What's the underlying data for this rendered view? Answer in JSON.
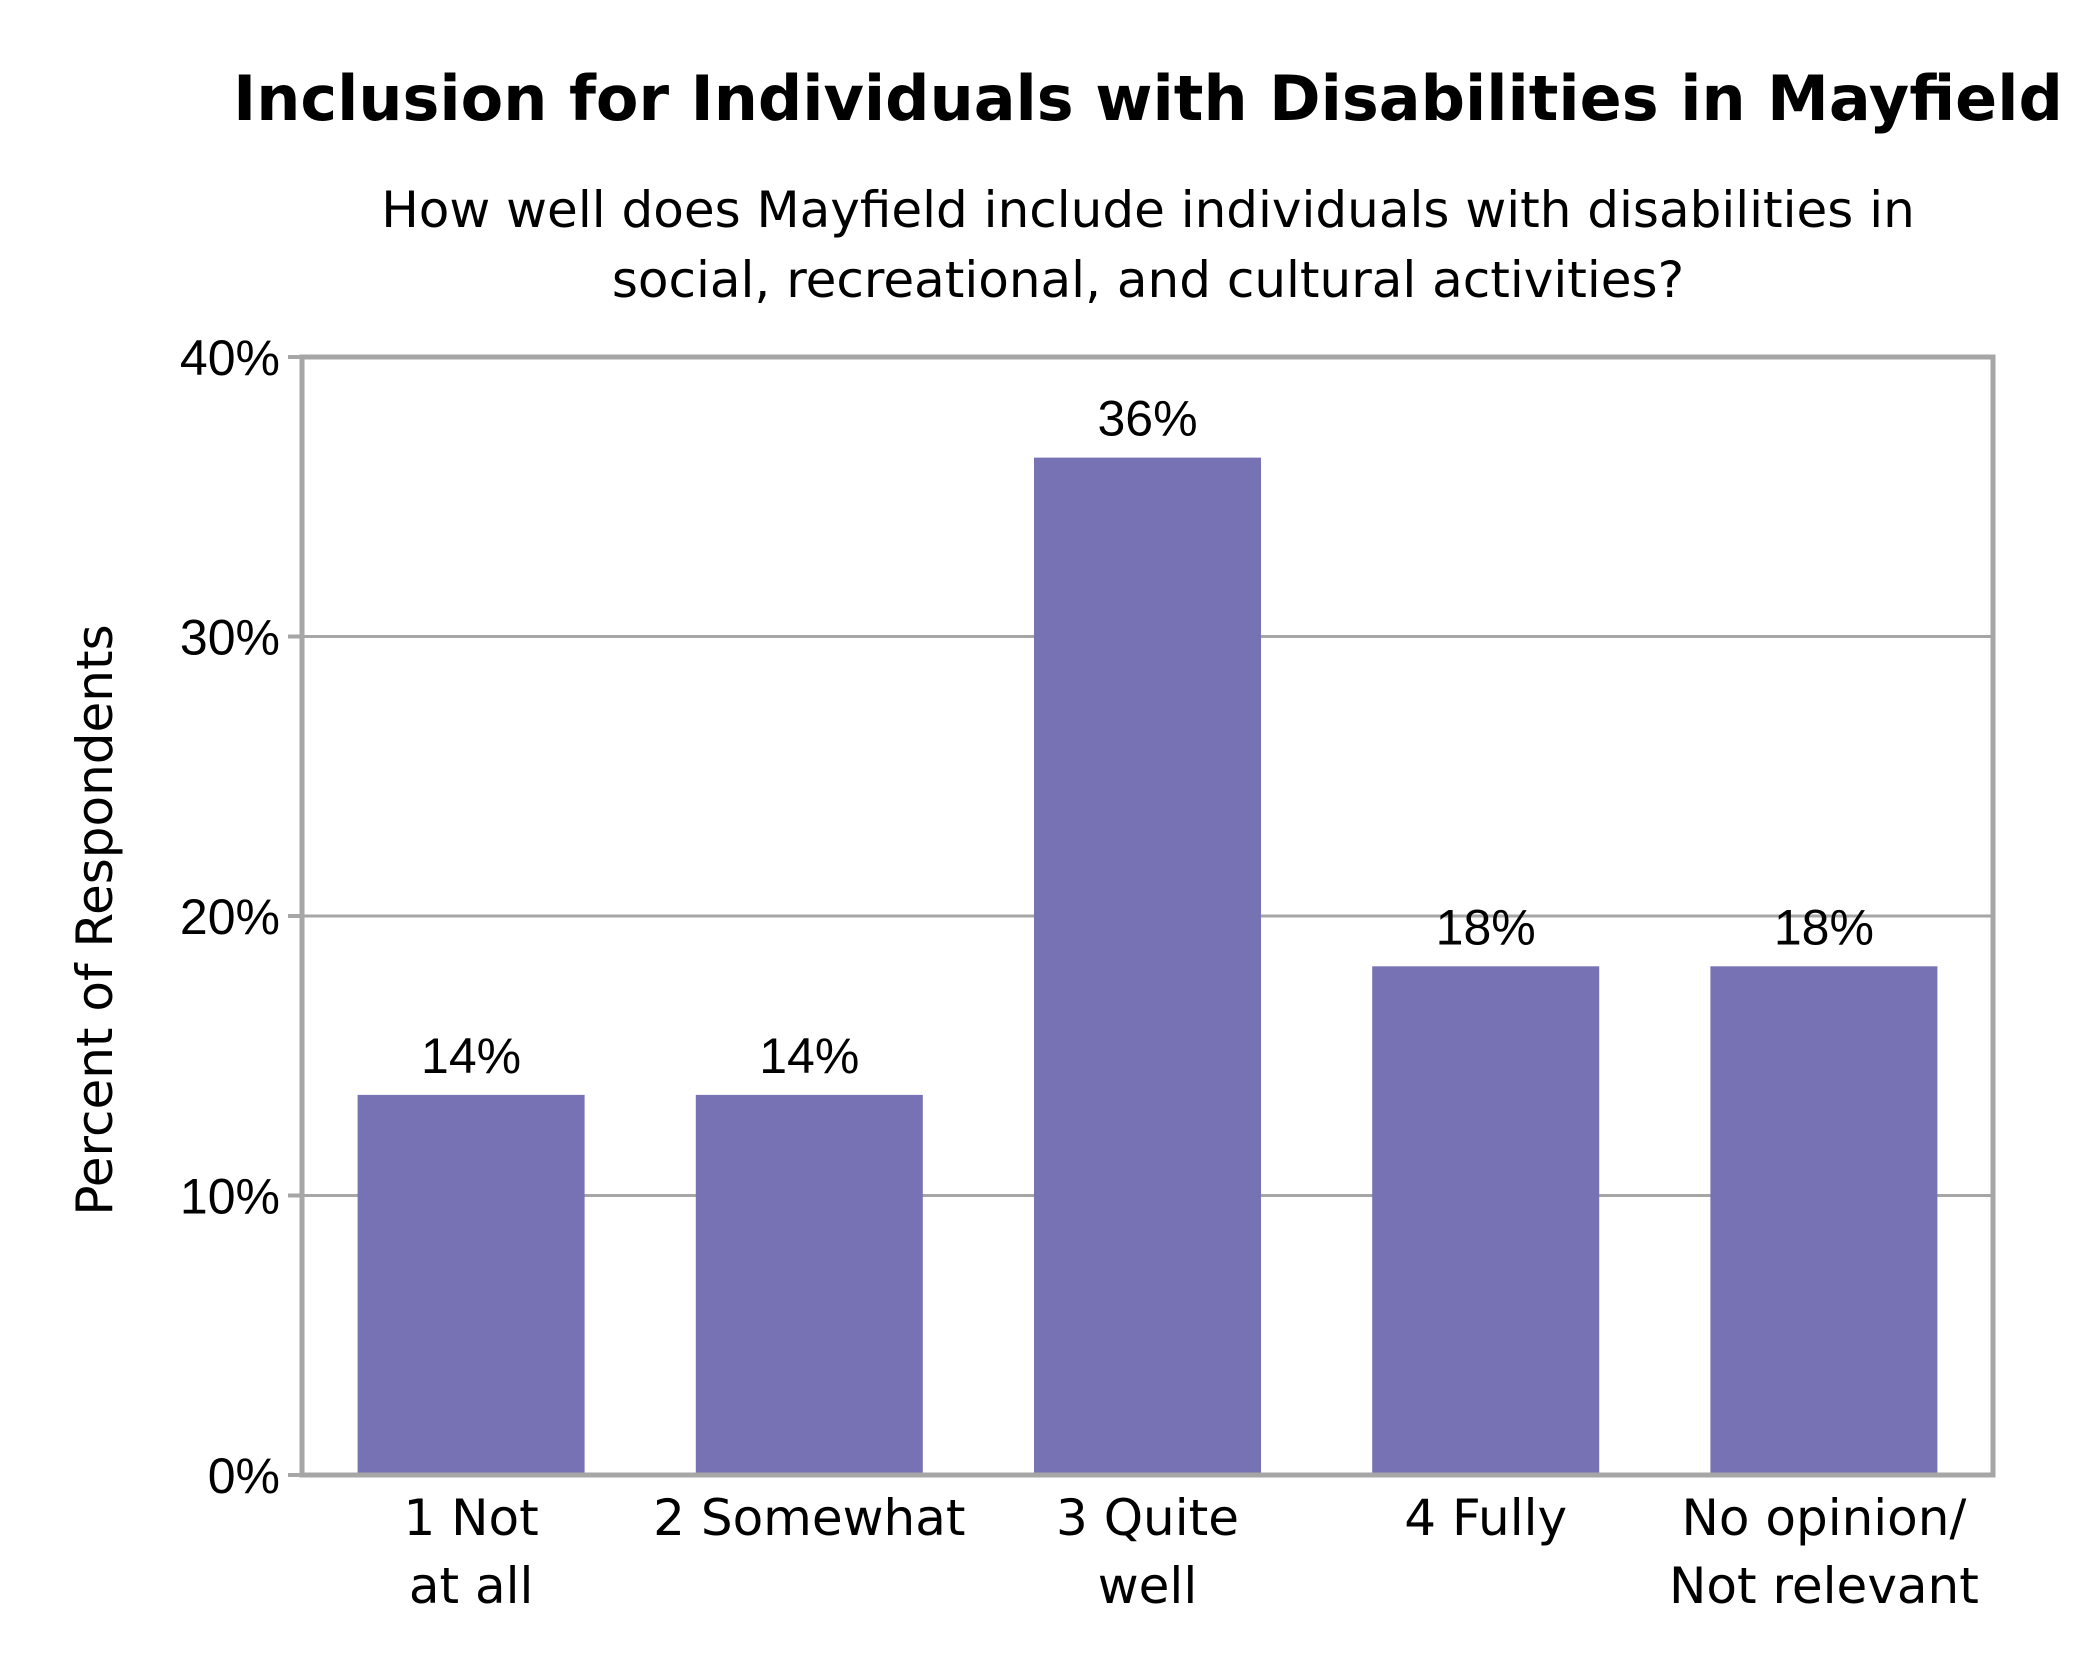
{
  "chart_data": {
    "type": "bar",
    "title": "Inclusion for Individuals with Disabilities in Mayfield",
    "subtitle_lines": [
      "How well does Mayfield include individuals with disabilities in",
      "social, recreational, and cultural activities?"
    ],
    "ylabel": "Percent of Respondents",
    "xlabel": "",
    "ylim": [
      0,
      40
    ],
    "yticks": [
      0,
      10,
      20,
      30,
      40
    ],
    "ytick_labels": [
      "0%",
      "10%",
      "20%",
      "30%",
      "40%"
    ],
    "grid": true,
    "categories": [
      [
        "1 Not",
        "at all"
      ],
      [
        "2 Somewhat"
      ],
      [
        "3 Quite",
        "well"
      ],
      [
        "4 Fully"
      ],
      [
        "No opinion/",
        "Not relevant"
      ]
    ],
    "values": [
      13.6,
      13.6,
      36.4,
      18.2,
      18.2
    ],
    "data_labels": [
      "14%",
      "14%",
      "36%",
      "18%",
      "18%"
    ],
    "colors": {
      "bar": "#7672b3",
      "axis": "#a6a6a6",
      "grid": "#a6a6a6"
    }
  }
}
